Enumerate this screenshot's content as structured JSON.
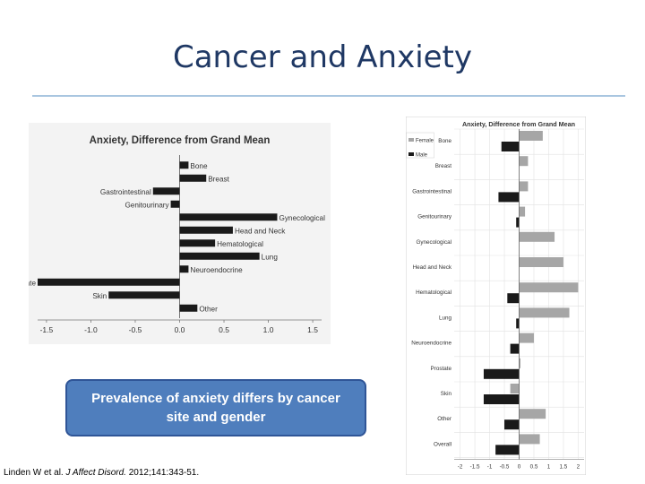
{
  "slide": {
    "title": "Cancer and Anxiety",
    "callout": "Prevalence of anxiety differs by cancer site and gender",
    "citation": {
      "authors": "Linden W et al.",
      "journal": "J Affect Disord.",
      "details": "2012;141:343-51."
    }
  },
  "colors": {
    "title": "#1f3864",
    "rule": "#a9c6e0",
    "callout_fill": "#4f7ebd",
    "bar_dark": "#1a1a1a",
    "bar_female": "#a6a6a6"
  },
  "chart_data": [
    {
      "type": "bar",
      "orientation": "horizontal",
      "title": "Anxiety, Difference from Grand Mean",
      "categories": [
        "Bone",
        "Breast",
        "Gastrointestinal",
        "Genitourinary",
        "Gynecological",
        "Head and Neck",
        "Hematological",
        "Lung",
        "Neuroendocrine",
        "Prostate",
        "Skin",
        "Other"
      ],
      "values": [
        0.1,
        0.3,
        -0.3,
        -0.1,
        1.1,
        0.6,
        0.4,
        0.9,
        0.1,
        -1.6,
        -0.8,
        0.2
      ],
      "xlim": [
        -1.6,
        1.6
      ],
      "xticks": [
        -1.5,
        -1.0,
        -0.5,
        0.0,
        0.5,
        1.0,
        1.5
      ],
      "xtick_labels": [
        "-1.5",
        "-1.0",
        "-0.5",
        "0.0",
        "0.5",
        "1.0",
        "1.5"
      ],
      "grid": false
    },
    {
      "type": "bar",
      "orientation": "horizontal",
      "title": "Anxiety, Difference from Grand Mean",
      "categories": [
        "Bone",
        "Breast",
        "Gastrointestinal",
        "Genitourinary",
        "Gynecological",
        "Head and Neck",
        "Hematological",
        "Lung",
        "Neuroendocrine",
        "Prostate",
        "Skin",
        "Other",
        "Overall"
      ],
      "series": [
        {
          "name": "Female",
          "values": [
            0.8,
            0.3,
            0.3,
            0.2,
            1.2,
            1.5,
            2.0,
            1.7,
            0.5,
            0.0,
            -0.3,
            0.9,
            0.7
          ]
        },
        {
          "name": "Male",
          "values": [
            -0.6,
            null,
            -0.7,
            -0.1,
            null,
            null,
            -0.4,
            -0.1,
            -0.3,
            -1.2,
            -1.2,
            -0.5,
            -0.8
          ]
        }
      ],
      "xlim": [
        -2.2,
        2.2
      ],
      "xticks": [
        -2,
        -1.5,
        -1,
        -0.5,
        0,
        0.5,
        1,
        1.5,
        2
      ],
      "xtick_labels": [
        "-2",
        "-1.5",
        "-1",
        "-0.5",
        "0",
        "0.5",
        "1",
        "1.5",
        "2"
      ],
      "legend": "top-left",
      "grid": true
    }
  ]
}
